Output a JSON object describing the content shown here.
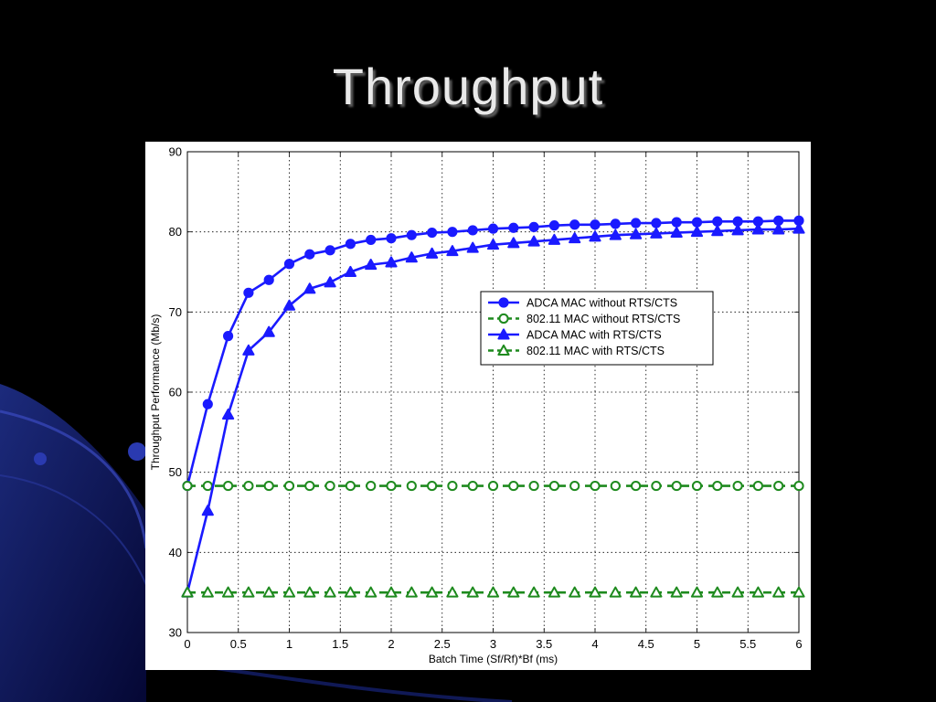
{
  "slide": {
    "title": "Throughput"
  },
  "colors": {
    "background": "#000000",
    "accent_blue": "#1a1aff",
    "accent_green": "#1e8a1e"
  },
  "chart_data": {
    "type": "line",
    "title": "",
    "xlabel": "Batch Time (Sf/Rf)*Bf (ms)",
    "ylabel": "Throughput Performance (Mb/s)",
    "xlim": [
      0,
      6
    ],
    "ylim": [
      30,
      90
    ],
    "xticks": [
      "0",
      "0.5",
      "1",
      "1.5",
      "2",
      "2.5",
      "3",
      "3.5",
      "4",
      "4.5",
      "5",
      "5.5",
      "6"
    ],
    "yticks": [
      "30",
      "40",
      "50",
      "60",
      "70",
      "80",
      "90"
    ],
    "grid": true,
    "legend_position": "right-center",
    "x": [
      0,
      0.2,
      0.4,
      0.6,
      0.8,
      1.0,
      1.2,
      1.4,
      1.6,
      1.8,
      2.0,
      2.2,
      2.4,
      2.6,
      2.8,
      3.0,
      3.2,
      3.4,
      3.6,
      3.8,
      4.0,
      4.2,
      4.4,
      4.6,
      4.8,
      5.0,
      5.2,
      5.4,
      5.6,
      5.8,
      6.0
    ],
    "series": [
      {
        "name": "ADCA MAC without RTS/CTS",
        "color": "#1a1aff",
        "marker": "circle-filled",
        "dash": "solid",
        "values": [
          48.3,
          58.5,
          67.0,
          72.4,
          74.0,
          76.0,
          77.2,
          77.7,
          78.5,
          79.0,
          79.2,
          79.6,
          79.9,
          80.0,
          80.2,
          80.4,
          80.5,
          80.6,
          80.8,
          80.9,
          80.9,
          81.0,
          81.1,
          81.1,
          81.2,
          81.2,
          81.3,
          81.3,
          81.3,
          81.4,
          81.4
        ]
      },
      {
        "name": "802.11 MAC without RTS/CTS",
        "color": "#1e8a1e",
        "marker": "circle-open",
        "dash": "dashed",
        "values": [
          48.3,
          48.3,
          48.3,
          48.3,
          48.3,
          48.3,
          48.3,
          48.3,
          48.3,
          48.3,
          48.3,
          48.3,
          48.3,
          48.3,
          48.3,
          48.3,
          48.3,
          48.3,
          48.3,
          48.3,
          48.3,
          48.3,
          48.3,
          48.3,
          48.3,
          48.3,
          48.3,
          48.3,
          48.3,
          48.3,
          48.3
        ]
      },
      {
        "name": "ADCA MAC with RTS/CTS",
        "color": "#1a1aff",
        "marker": "triangle-filled",
        "dash": "solid",
        "values": [
          35.0,
          45.2,
          57.2,
          65.2,
          67.5,
          70.8,
          72.9,
          73.7,
          75.0,
          75.9,
          76.2,
          76.8,
          77.3,
          77.6,
          78.0,
          78.4,
          78.6,
          78.8,
          79.0,
          79.2,
          79.4,
          79.6,
          79.7,
          79.8,
          79.9,
          80.0,
          80.1,
          80.2,
          80.3,
          80.3,
          80.4
        ]
      },
      {
        "name": "802.11 MAC with RTS/CTS",
        "color": "#1e8a1e",
        "marker": "triangle-open",
        "dash": "dashed",
        "values": [
          35.0,
          35.0,
          35.0,
          35.0,
          35.0,
          35.0,
          35.0,
          35.0,
          35.0,
          35.0,
          35.0,
          35.0,
          35.0,
          35.0,
          35.0,
          35.0,
          35.0,
          35.0,
          35.0,
          35.0,
          35.0,
          35.0,
          35.0,
          35.0,
          35.0,
          35.0,
          35.0,
          35.0,
          35.0,
          35.0,
          35.0
        ]
      }
    ]
  }
}
